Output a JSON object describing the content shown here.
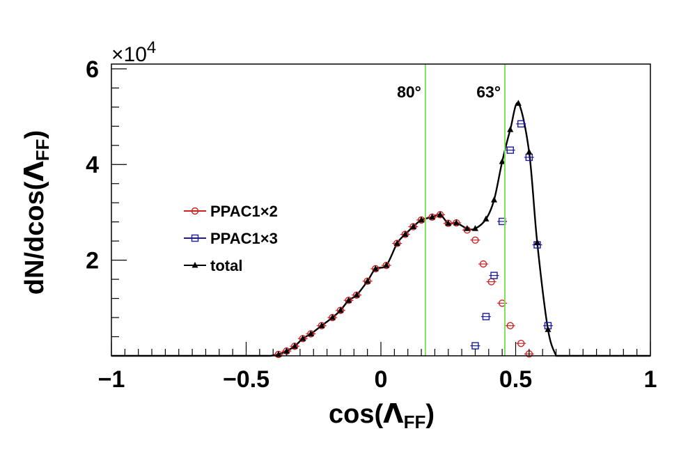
{
  "chart_data": {
    "type": "line",
    "xlabel_main": "cos(",
    "xlabel_greek": "Λ",
    "xlabel_sub": "FF",
    "xlabel_close": ")",
    "ylabel_main": "dN/dcos(",
    "ylabel_greek": "Λ",
    "ylabel_sub": "FF",
    "ylabel_close": ")",
    "y_multiplier_base": "×10",
    "y_multiplier_exp": "4",
    "xlim": [
      -1,
      1
    ],
    "ylim": [
      0,
      61000
    ],
    "x_ticks": [
      {
        "value": -1,
        "label": "−1"
      },
      {
        "value": -0.5,
        "label": "−0.5"
      },
      {
        "value": 0,
        "label": "0"
      },
      {
        "value": 0.5,
        "label": "0.5"
      },
      {
        "value": 1,
        "label": "1"
      }
    ],
    "y_ticks": [
      {
        "value": 20000,
        "label": "2"
      },
      {
        "value": 40000,
        "label": "4"
      },
      {
        "value": 60000,
        "label": "6"
      }
    ],
    "vlines": [
      {
        "x": 0.165,
        "label": "80°",
        "color": "#7fe05a"
      },
      {
        "x": 0.46,
        "label": "63°",
        "color": "#7fe05a"
      }
    ],
    "legend_position": "middle-left",
    "series": [
      {
        "name": "PPAC1×2",
        "marker": "circle",
        "color": "#cc2222",
        "points": [
          [
            -0.38,
            300
          ],
          [
            -0.35,
            1000
          ],
          [
            -0.32,
            2000
          ],
          [
            -0.29,
            3600
          ],
          [
            -0.26,
            4600
          ],
          [
            -0.22,
            6300
          ],
          [
            -0.18,
            8000
          ],
          [
            -0.15,
            9500
          ],
          [
            -0.12,
            11600
          ],
          [
            -0.09,
            12700
          ],
          [
            -0.05,
            15600
          ],
          [
            -0.02,
            18200
          ],
          [
            0.02,
            18900
          ],
          [
            0.06,
            23500
          ],
          [
            0.09,
            25400
          ],
          [
            0.12,
            27000
          ],
          [
            0.15,
            28400
          ],
          [
            0.19,
            29000
          ],
          [
            0.22,
            29500
          ],
          [
            0.25,
            27700
          ],
          [
            0.28,
            27800
          ],
          [
            0.32,
            26300
          ],
          [
            0.35,
            24200
          ],
          [
            0.38,
            19200
          ],
          [
            0.41,
            15500
          ],
          [
            0.45,
            11000
          ],
          [
            0.48,
            6300
          ],
          [
            0.52,
            2600
          ],
          [
            0.55,
            400
          ]
        ]
      },
      {
        "name": "PPAC1×3",
        "marker": "square",
        "color": "#1a1aa0",
        "points": [
          [
            0.35,
            2100
          ],
          [
            0.39,
            8200
          ],
          [
            0.42,
            16800
          ],
          [
            0.45,
            28100
          ],
          [
            0.48,
            43000
          ],
          [
            0.52,
            48500
          ],
          [
            0.55,
            41500
          ],
          [
            0.58,
            23200
          ],
          [
            0.62,
            6300
          ]
        ]
      },
      {
        "name": "total",
        "marker": "triangle",
        "color": "#000000",
        "points": [
          [
            -0.38,
            300
          ],
          [
            -0.35,
            1000
          ],
          [
            -0.32,
            2000
          ],
          [
            -0.29,
            3600
          ],
          [
            -0.26,
            4600
          ],
          [
            -0.22,
            6300
          ],
          [
            -0.18,
            8000
          ],
          [
            -0.15,
            9500
          ],
          [
            -0.12,
            11600
          ],
          [
            -0.09,
            12700
          ],
          [
            -0.05,
            15600
          ],
          [
            -0.02,
            18200
          ],
          [
            0.02,
            18900
          ],
          [
            0.06,
            23500
          ],
          [
            0.09,
            25400
          ],
          [
            0.12,
            27000
          ],
          [
            0.15,
            28400
          ],
          [
            0.19,
            29000
          ],
          [
            0.22,
            29500
          ],
          [
            0.25,
            27700
          ],
          [
            0.28,
            27800
          ],
          [
            0.32,
            26600
          ],
          [
            0.35,
            26600
          ],
          [
            0.39,
            28600
          ],
          [
            0.42,
            32600
          ],
          [
            0.45,
            40600
          ],
          [
            0.48,
            47300
          ],
          [
            0.51,
            52800
          ],
          [
            0.55,
            42600
          ],
          [
            0.58,
            23700
          ],
          [
            0.62,
            5500
          ],
          [
            0.65,
            0
          ]
        ]
      }
    ]
  }
}
